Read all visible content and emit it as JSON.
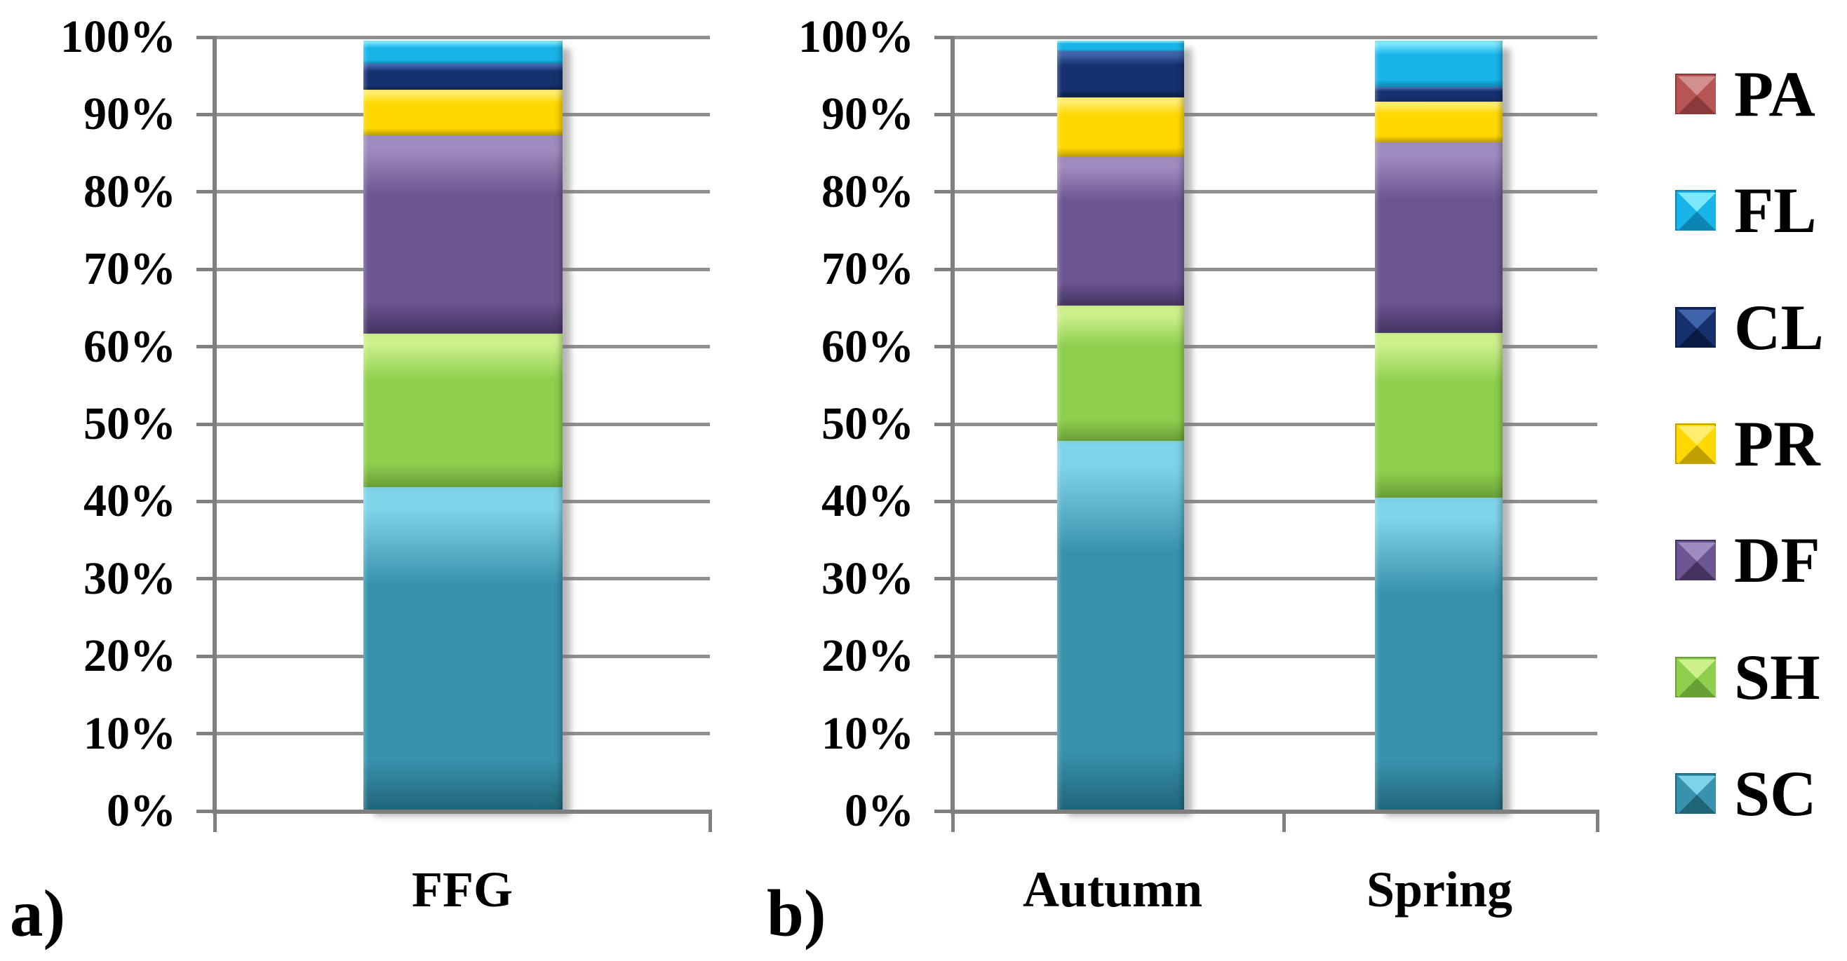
{
  "figure": {
    "background": "#ffffff",
    "gridline_color": "#8f8f8f",
    "axis_color": "#7f7f7f",
    "text_color": "#000000"
  },
  "chart_data": [
    {
      "id": "a",
      "type": "bar",
      "subtype": "stacked-100-percent",
      "panel_label": "a)",
      "title": "",
      "xlabel": "",
      "ylabel": "",
      "categories": [
        "FFG"
      ],
      "series": [
        {
          "name": "SC",
          "values": [
            42.0
          ]
        },
        {
          "name": "SH",
          "values": [
            20.0
          ]
        },
        {
          "name": "DF",
          "values": [
            25.7
          ]
        },
        {
          "name": "PR",
          "values": [
            5.9
          ]
        },
        {
          "name": "CL",
          "values": [
            3.4
          ]
        },
        {
          "name": "FL",
          "values": [
            3.0
          ]
        },
        {
          "name": "PA",
          "values": [
            0.0
          ]
        }
      ],
      "ylim": [
        0,
        100
      ],
      "y_tick_labels": [
        "100%",
        "90%",
        "80%",
        "70%",
        "60%",
        "50%",
        "40%",
        "30%",
        "20%",
        "10%",
        "0%"
      ],
      "grid": true
    },
    {
      "id": "b",
      "type": "bar",
      "subtype": "stacked-100-percent",
      "panel_label": "b)",
      "title": "",
      "xlabel": "",
      "ylabel": "",
      "categories": [
        "Autumn",
        "Spring"
      ],
      "series": [
        {
          "name": "SC",
          "values": [
            48.0,
            40.7
          ]
        },
        {
          "name": "SH",
          "values": [
            17.6,
            21.4
          ]
        },
        {
          "name": "DF",
          "values": [
            19.3,
            24.7
          ]
        },
        {
          "name": "PR",
          "values": [
            7.7,
            5.3
          ]
        },
        {
          "name": "CL",
          "values": [
            6.0,
            1.9
          ]
        },
        {
          "name": "FL",
          "values": [
            1.4,
            6.0
          ]
        },
        {
          "name": "PA",
          "values": [
            0.0,
            0.0
          ]
        }
      ],
      "ylim": [
        0,
        100
      ],
      "y_tick_labels": [
        "100%",
        "90%",
        "80%",
        "70%",
        "60%",
        "50%",
        "40%",
        "30%",
        "20%",
        "10%",
        "0%"
      ],
      "grid": true
    }
  ],
  "series_colors": {
    "SC": {
      "main": "#3892ad",
      "light": "#7fd3e8",
      "dark": "#206478"
    },
    "SH": {
      "main": "#8ecf4e",
      "light": "#cdf08c",
      "dark": "#699f36"
    },
    "DF": {
      "main": "#6b5691",
      "light": "#9f8cbe",
      "dark": "#443361"
    },
    "PR": {
      "main": "#ffd800",
      "light": "#ffee6e",
      "dark": "#bfa000"
    },
    "CL": {
      "main": "#16316e",
      "light": "#3f64ac",
      "dark": "#0a1b42"
    },
    "FL": {
      "main": "#18b4e9",
      "light": "#7de8fc",
      "dark": "#0d85b3"
    },
    "PA": {
      "main": "#b75454",
      "light": "#d28f8f",
      "dark": "#8a3a3a"
    }
  },
  "legend": {
    "position": "right",
    "items": [
      "PA",
      "FL",
      "CL",
      "PR",
      "DF",
      "SH",
      "SC"
    ]
  }
}
